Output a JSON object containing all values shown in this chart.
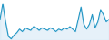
{
  "values": [
    22,
    35,
    20,
    8,
    6,
    9,
    11,
    14,
    12,
    15,
    14,
    13,
    16,
    15,
    13,
    15,
    14,
    13,
    15,
    14,
    12,
    14,
    13,
    15,
    14,
    16,
    14,
    12,
    22,
    32,
    18,
    14,
    18,
    26,
    15,
    20,
    30,
    26,
    20,
    22
  ],
  "line_color": "#2196c4",
  "bg_color": "#ffffff",
  "fill_color": "#b8d9ee",
  "linewidth": 0.8,
  "fill_alpha": 0.35
}
